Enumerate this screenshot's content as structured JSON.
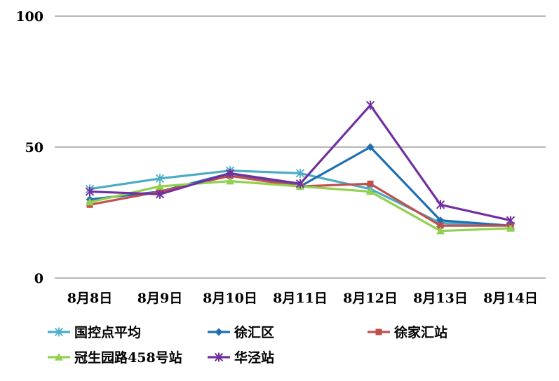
{
  "chart_data": {
    "type": "line",
    "title": "",
    "xlabel": "",
    "ylabel": "",
    "categories": [
      "8月8日",
      "8月9日",
      "8月10日",
      "8月11日",
      "8月12日",
      "8月13日",
      "8月14日"
    ],
    "yticks": [
      "0",
      "50",
      "100"
    ],
    "ylim": [
      0,
      100
    ],
    "grid": true,
    "legend_position": "bottom",
    "series": [
      {
        "name": "国控点平均",
        "color": "#4BACC6",
        "marker": "asterisk",
        "values": [
          34,
          38,
          41,
          40,
          34,
          21,
          20
        ]
      },
      {
        "name": "徐汇区",
        "color": "#1F6FB2",
        "marker": "diamond",
        "values": [
          30,
          33,
          40,
          35,
          50,
          22,
          20
        ]
      },
      {
        "name": "徐家汇站",
        "color": "#C0504D",
        "marker": "square",
        "values": [
          28,
          33,
          39,
          35,
          36,
          20,
          20
        ]
      },
      {
        "name": "冠生园路458号站",
        "color": "#92D050",
        "marker": "triangle",
        "values": [
          29,
          35,
          37,
          35,
          33,
          18,
          19
        ]
      },
      {
        "name": "华泾站",
        "color": "#7030A0",
        "marker": "x-star",
        "values": [
          33,
          32,
          40,
          36,
          66,
          28,
          22
        ]
      }
    ]
  }
}
